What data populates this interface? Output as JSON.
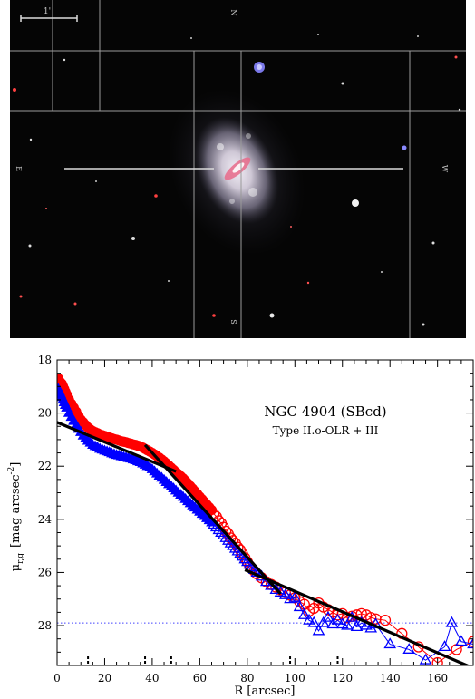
{
  "image_panel": {
    "scale_label": "1'",
    "compass_n": "N",
    "compass_e": "E",
    "compass_w": "W",
    "compass_s": "S",
    "colors": {
      "sky": "#050505",
      "galaxy": "#b9b4c4",
      "grid": "#9a9a9a"
    }
  },
  "chart_data": {
    "type": "line",
    "title": "NGC 4904 (SBcd)",
    "subtitle": "Type II.o-OLR + III",
    "xlabel": "R [arcsec]",
    "ylabel": "μr,g [mag arcsec⁻²]",
    "ylabel_main": "μ",
    "ylabel_sub": "r,g",
    "ylabel_unit": "[mag arcsec",
    "ylabel_exp": "-2",
    "ylabel_close": "]",
    "xlim": [
      0,
      175
    ],
    "ylim": [
      29.5,
      18
    ],
    "xticks": [
      "0",
      "20",
      "40",
      "60",
      "80",
      "100",
      "120",
      "140",
      "160"
    ],
    "yticks": [
      "18",
      "20",
      "22",
      "24",
      "26",
      "28"
    ],
    "grid": false,
    "sky_limit_r": 27.3,
    "sky_limit_g": 27.9,
    "break_markers": [
      13,
      37,
      48,
      98,
      118
    ],
    "series": [
      {
        "color": "#ff0000",
        "marker": "circle",
        "inner": [
          [
            0.5,
            18.7
          ],
          [
            1,
            18.8
          ],
          [
            1.5,
            18.85
          ],
          [
            2,
            18.9
          ],
          [
            2.5,
            19.0
          ],
          [
            3,
            19.1
          ],
          [
            3.5,
            19.2
          ],
          [
            4,
            19.3
          ],
          [
            5,
            19.5
          ],
          [
            6,
            19.65
          ],
          [
            7,
            19.8
          ],
          [
            8,
            19.95
          ],
          [
            9,
            20.1
          ],
          [
            10,
            20.25
          ],
          [
            11,
            20.35
          ],
          [
            12,
            20.45
          ],
          [
            13,
            20.55
          ],
          [
            14,
            20.62
          ],
          [
            15,
            20.68
          ],
          [
            16,
            20.72
          ],
          [
            17,
            20.76
          ],
          [
            18,
            20.8
          ],
          [
            19,
            20.83
          ],
          [
            20,
            20.86
          ],
          [
            21,
            20.89
          ],
          [
            22,
            20.92
          ],
          [
            23,
            20.95
          ],
          [
            24,
            20.98
          ],
          [
            25,
            21.0
          ],
          [
            26,
            21.03
          ],
          [
            27,
            21.06
          ],
          [
            28,
            21.08
          ],
          [
            29,
            21.1
          ],
          [
            30,
            21.13
          ],
          [
            31,
            21.15
          ],
          [
            32,
            21.18
          ],
          [
            33,
            21.2
          ],
          [
            34,
            21.23
          ],
          [
            35,
            21.26
          ],
          [
            36,
            21.3
          ],
          [
            37,
            21.35
          ],
          [
            38,
            21.4
          ],
          [
            39,
            21.45
          ],
          [
            40,
            21.5
          ],
          [
            41,
            21.56
          ],
          [
            42,
            21.62
          ],
          [
            43,
            21.68
          ],
          [
            44,
            21.75
          ],
          [
            45,
            21.82
          ],
          [
            46,
            21.9
          ],
          [
            47,
            21.98
          ],
          [
            48,
            22.06
          ],
          [
            49,
            22.14
          ],
          [
            50,
            22.22
          ],
          [
            51,
            22.3
          ],
          [
            52,
            22.38
          ],
          [
            53,
            22.46
          ],
          [
            54,
            22.55
          ],
          [
            55,
            22.65
          ],
          [
            56,
            22.75
          ],
          [
            57,
            22.85
          ],
          [
            58,
            22.95
          ],
          [
            59,
            23.05
          ],
          [
            60,
            23.15
          ],
          [
            61,
            23.25
          ],
          [
            62,
            23.35
          ],
          [
            63,
            23.45
          ],
          [
            64,
            23.55
          ],
          [
            65,
            23.65
          ]
        ],
        "outer": [
          [
            66,
            23.8
          ],
          [
            67,
            23.9
          ],
          [
            68,
            24.05
          ],
          [
            69,
            24.15
          ],
          [
            70,
            24.3
          ],
          [
            71,
            24.45
          ],
          [
            72,
            24.55
          ],
          [
            73,
            24.7
          ],
          [
            74,
            24.8
          ],
          [
            75,
            24.9
          ],
          [
            76,
            25.05
          ],
          [
            77,
            25.15
          ],
          [
            78,
            25.3
          ],
          [
            79,
            25.45
          ],
          [
            80,
            25.6
          ],
          [
            81,
            25.75
          ],
          [
            82,
            25.85
          ],
          [
            83,
            25.95
          ],
          [
            84,
            26.05
          ],
          [
            86,
            26.2
          ],
          [
            88,
            26.35
          ],
          [
            90,
            26.45
          ],
          [
            92,
            26.55
          ],
          [
            94,
            26.65
          ],
          [
            96,
            26.75
          ],
          [
            98,
            26.85
          ],
          [
            100,
            26.95
          ],
          [
            102,
            27.1
          ],
          [
            104,
            27.2
          ],
          [
            106,
            27.45
          ],
          [
            108,
            27.35
          ],
          [
            110,
            27.15
          ],
          [
            112,
            27.3
          ],
          [
            114,
            27.4
          ],
          [
            116,
            27.5
          ],
          [
            118,
            27.6
          ],
          [
            120,
            27.55
          ],
          [
            122,
            27.7
          ],
          [
            124,
            27.65
          ],
          [
            126,
            27.6
          ],
          [
            128,
            27.55
          ],
          [
            130,
            27.6
          ],
          [
            132,
            27.7
          ],
          [
            134,
            27.75
          ],
          [
            138,
            27.8
          ],
          [
            145,
            28.3
          ],
          [
            152,
            28.8
          ],
          [
            160,
            29.4
          ],
          [
            168,
            28.9
          ],
          [
            175,
            28.6
          ]
        ]
      },
      {
        "color": "#0000ff",
        "marker": "triangle",
        "inner": [
          [
            0.5,
            19.1
          ],
          [
            1,
            19.2
          ],
          [
            1.5,
            19.3
          ],
          [
            2,
            19.4
          ],
          [
            2.5,
            19.5
          ],
          [
            3,
            19.6
          ],
          [
            3.5,
            19.7
          ],
          [
            4,
            19.8
          ],
          [
            5,
            20.0
          ],
          [
            6,
            20.15
          ],
          [
            7,
            20.3
          ],
          [
            8,
            20.45
          ],
          [
            9,
            20.6
          ],
          [
            10,
            20.72
          ],
          [
            11,
            20.85
          ],
          [
            12,
            20.95
          ],
          [
            13,
            21.05
          ],
          [
            14,
            21.12
          ],
          [
            15,
            21.2
          ],
          [
            16,
            21.25
          ],
          [
            17,
            21.3
          ],
          [
            18,
            21.35
          ],
          [
            19,
            21.38
          ],
          [
            20,
            21.42
          ],
          [
            21,
            21.45
          ],
          [
            22,
            21.48
          ],
          [
            23,
            21.52
          ],
          [
            24,
            21.55
          ],
          [
            25,
            21.58
          ],
          [
            26,
            21.6
          ],
          [
            27,
            21.63
          ],
          [
            28,
            21.66
          ],
          [
            29,
            21.68
          ],
          [
            30,
            21.7
          ],
          [
            31,
            21.72
          ],
          [
            32,
            21.75
          ],
          [
            33,
            21.78
          ],
          [
            34,
            21.82
          ],
          [
            35,
            21.85
          ],
          [
            36,
            21.9
          ],
          [
            37,
            21.95
          ],
          [
            38,
            22.0
          ],
          [
            39,
            22.05
          ],
          [
            40,
            22.12
          ],
          [
            41,
            22.2
          ],
          [
            42,
            22.28
          ],
          [
            43,
            22.36
          ],
          [
            44,
            22.44
          ],
          [
            45,
            22.52
          ],
          [
            46,
            22.6
          ],
          [
            47,
            22.68
          ],
          [
            48,
            22.76
          ],
          [
            49,
            22.84
          ],
          [
            50,
            22.92
          ],
          [
            51,
            23.0
          ],
          [
            52,
            23.08
          ],
          [
            53,
            23.16
          ],
          [
            54,
            23.24
          ],
          [
            55,
            23.32
          ],
          [
            56,
            23.4
          ],
          [
            57,
            23.48
          ],
          [
            58,
            23.56
          ],
          [
            59,
            23.64
          ],
          [
            60,
            23.72
          ],
          [
            61,
            23.8
          ],
          [
            62,
            23.88
          ],
          [
            63,
            23.96
          ],
          [
            64,
            24.04
          ],
          [
            65,
            24.12
          ]
        ],
        "outer": [
          [
            66,
            24.2
          ],
          [
            67,
            24.3
          ],
          [
            68,
            24.4
          ],
          [
            69,
            24.5
          ],
          [
            70,
            24.6
          ],
          [
            71,
            24.7
          ],
          [
            72,
            24.8
          ],
          [
            73,
            24.9
          ],
          [
            74,
            25.0
          ],
          [
            75,
            25.1
          ],
          [
            76,
            25.2
          ],
          [
            77,
            25.3
          ],
          [
            78,
            25.4
          ],
          [
            79,
            25.5
          ],
          [
            80,
            25.6
          ],
          [
            81,
            25.7
          ],
          [
            82,
            25.8
          ],
          [
            83,
            25.9
          ],
          [
            84,
            26.0
          ],
          [
            86,
            26.15
          ],
          [
            88,
            26.35
          ],
          [
            90,
            26.5
          ],
          [
            92,
            26.65
          ],
          [
            94,
            26.75
          ],
          [
            96,
            26.85
          ],
          [
            98,
            27.0
          ],
          [
            100,
            26.95
          ],
          [
            102,
            27.3
          ],
          [
            104,
            27.6
          ],
          [
            106,
            27.8
          ],
          [
            108,
            27.9
          ],
          [
            110,
            28.2
          ],
          [
            112,
            27.9
          ],
          [
            114,
            27.7
          ],
          [
            116,
            27.95
          ],
          [
            118,
            27.8
          ],
          [
            120,
            27.95
          ],
          [
            122,
            28.0
          ],
          [
            124,
            27.7
          ],
          [
            126,
            28.05
          ],
          [
            128,
            27.9
          ],
          [
            130,
            28.0
          ],
          [
            132,
            28.1
          ],
          [
            134,
            27.95
          ],
          [
            140,
            28.7
          ],
          [
            148,
            28.9
          ],
          [
            155,
            29.3
          ],
          [
            163,
            28.8
          ],
          [
            166,
            27.9
          ],
          [
            170,
            28.6
          ],
          [
            175,
            28.7
          ]
        ]
      }
    ],
    "fits": [
      {
        "x": [
          0,
          50
        ],
        "y": [
          20.35,
          22.2
        ]
      },
      {
        "x": [
          37,
          94
        ],
        "y": [
          21.2,
          26.8
        ]
      },
      {
        "x": [
          79,
          175
        ],
        "y": [
          25.9,
          29.6
        ]
      }
    ]
  }
}
